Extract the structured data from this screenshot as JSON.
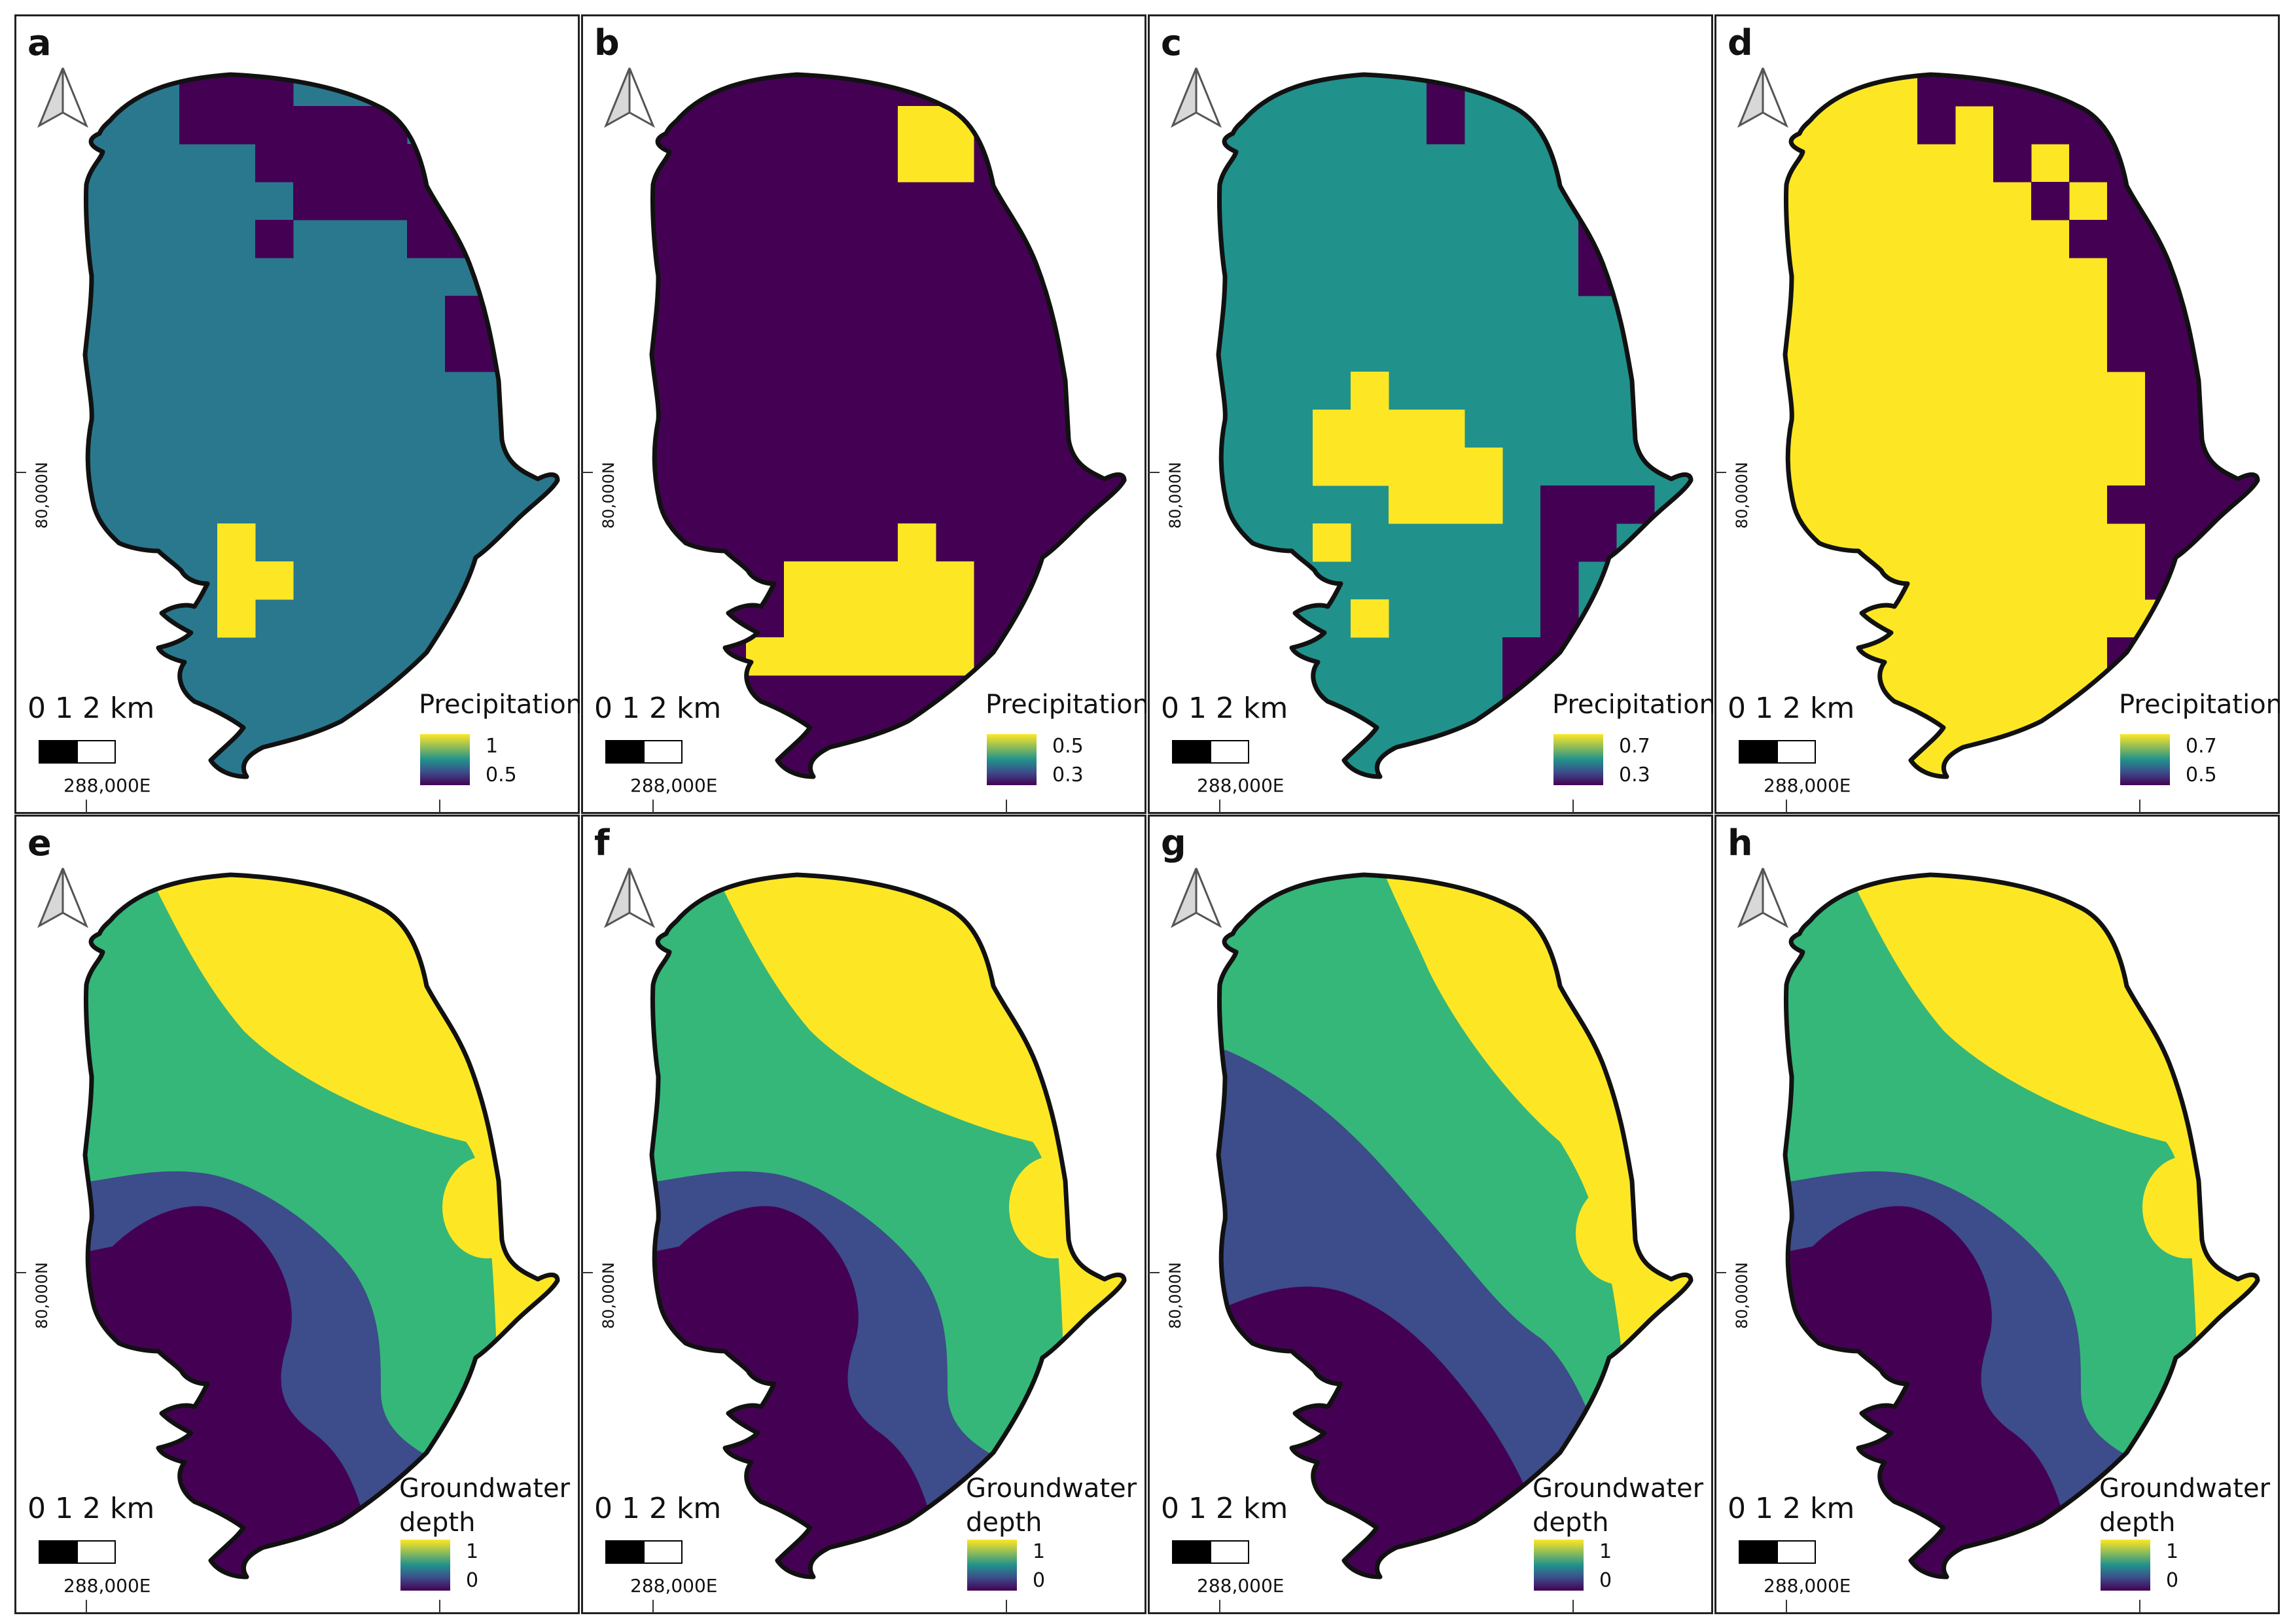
{
  "colors": {
    "purple": "#440154",
    "blue": "#3d4c8a",
    "teal": "#2a788e",
    "cyan": "#21918c",
    "green": "#35b779",
    "yellow": "#fde725",
    "outline": "#111111",
    "frame": "#222222"
  },
  "common": {
    "scale_text": "0  1  2 km",
    "northing_label": "80,000N",
    "easting_label": "288,000E",
    "north_arrow_icon": "north-arrow-icon"
  },
  "panels": [
    {
      "id": "a",
      "letter": "a",
      "legend_title": [
        "Precipitation"
      ],
      "legend_ticks": [
        "1",
        "0.5"
      ],
      "base": "teal",
      "cells": [
        [
          3,
          0
        ],
        [
          4,
          0
        ],
        [
          5,
          0
        ],
        [
          3,
          1
        ],
        [
          4,
          1
        ],
        [
          5,
          1
        ],
        [
          6,
          1
        ],
        [
          7,
          1
        ],
        [
          8,
          1
        ],
        [
          5,
          2
        ],
        [
          6,
          2
        ],
        [
          7,
          2
        ],
        [
          8,
          2
        ],
        [
          9,
          2
        ],
        [
          10,
          2
        ],
        [
          6,
          3
        ],
        [
          7,
          3
        ],
        [
          8,
          3
        ],
        [
          9,
          3
        ],
        [
          10,
          3
        ],
        [
          5,
          4
        ],
        [
          9,
          4
        ],
        [
          10,
          4
        ],
        [
          11,
          5
        ],
        [
          10,
          6
        ],
        [
          11,
          6
        ],
        [
          10,
          7
        ],
        [
          11,
          7
        ]
      ],
      "cells_hi": [
        [
          4,
          12
        ],
        [
          4,
          13
        ],
        [
          5,
          13
        ],
        [
          4,
          14
        ]
      ]
    },
    {
      "id": "b",
      "letter": "b",
      "legend_title": [
        "Precipitation"
      ],
      "legend_ticks": [
        "0.5",
        "0.3"
      ],
      "base": "purple",
      "cells": [],
      "cells_hi": [
        [
          7,
          1
        ],
        [
          8,
          1
        ],
        [
          7,
          2
        ],
        [
          8,
          2
        ],
        [
          7,
          12
        ],
        [
          4,
          13
        ],
        [
          5,
          13
        ],
        [
          6,
          13
        ],
        [
          7,
          13
        ],
        [
          8,
          13
        ],
        [
          4,
          14
        ],
        [
          5,
          14
        ],
        [
          6,
          14
        ],
        [
          7,
          14
        ],
        [
          8,
          14
        ],
        [
          3,
          15
        ],
        [
          4,
          15
        ],
        [
          5,
          15
        ],
        [
          6,
          15
        ],
        [
          7,
          15
        ],
        [
          8,
          15
        ]
      ]
    },
    {
      "id": "c",
      "letter": "c",
      "legend_title": [
        "Precipitation"
      ],
      "legend_ticks": [
        "0.7",
        "0.3"
      ],
      "base": "cyan",
      "cells": [
        [
          6,
          0
        ],
        [
          6,
          1
        ],
        [
          10,
          2
        ],
        [
          10,
          3
        ],
        [
          10,
          4
        ],
        [
          10,
          5
        ],
        [
          9,
          11
        ],
        [
          10,
          11
        ],
        [
          11,
          11
        ],
        [
          9,
          12
        ],
        [
          10,
          12
        ],
        [
          9,
          13
        ],
        [
          9,
          14
        ],
        [
          8,
          15
        ],
        [
          9,
          15
        ],
        [
          8,
          16
        ]
      ],
      "cells_hi": [
        [
          4,
          8
        ],
        [
          3,
          9
        ],
        [
          4,
          9
        ],
        [
          5,
          9
        ],
        [
          6,
          9
        ],
        [
          3,
          10
        ],
        [
          4,
          10
        ],
        [
          5,
          10
        ],
        [
          6,
          10
        ],
        [
          7,
          10
        ],
        [
          5,
          11
        ],
        [
          6,
          11
        ],
        [
          7,
          11
        ],
        [
          3,
          12
        ],
        [
          4,
          14
        ]
      ]
    },
    {
      "id": "d",
      "letter": "d",
      "legend_title": [
        "Precipitation"
      ],
      "legend_ticks": [
        "0.7",
        "0.5"
      ],
      "base": "yellow",
      "cells": [
        [
          4,
          0
        ],
        [
          5,
          0
        ],
        [
          6,
          0
        ],
        [
          7,
          0
        ],
        [
          8,
          0
        ],
        [
          9,
          0
        ],
        [
          10,
          0
        ],
        [
          11,
          0
        ],
        [
          12,
          0
        ],
        [
          4,
          1
        ],
        [
          6,
          1
        ],
        [
          7,
          1
        ],
        [
          8,
          1
        ],
        [
          9,
          1
        ],
        [
          10,
          1
        ],
        [
          11,
          1
        ],
        [
          12,
          1
        ],
        [
          6,
          2
        ],
        [
          8,
          2
        ],
        [
          9,
          2
        ],
        [
          10,
          2
        ],
        [
          11,
          2
        ],
        [
          12,
          2
        ],
        [
          7,
          3
        ],
        [
          9,
          3
        ],
        [
          10,
          3
        ],
        [
          11,
          3
        ],
        [
          12,
          3
        ],
        [
          8,
          4
        ],
        [
          9,
          4
        ],
        [
          10,
          4
        ],
        [
          11,
          4
        ],
        [
          12,
          4
        ],
        [
          9,
          5
        ],
        [
          10,
          5
        ],
        [
          11,
          5
        ],
        [
          12,
          5
        ],
        [
          9,
          6
        ],
        [
          10,
          6
        ],
        [
          11,
          6
        ],
        [
          12,
          6
        ],
        [
          9,
          7
        ],
        [
          10,
          7
        ],
        [
          11,
          7
        ],
        [
          12,
          7
        ],
        [
          10,
          8
        ],
        [
          11,
          8
        ],
        [
          12,
          8
        ],
        [
          10,
          9
        ],
        [
          11,
          9
        ],
        [
          12,
          9
        ],
        [
          10,
          10
        ],
        [
          11,
          10
        ],
        [
          12,
          10
        ],
        [
          9,
          11
        ],
        [
          10,
          11
        ],
        [
          11,
          11
        ],
        [
          12,
          11
        ],
        [
          10,
          12
        ],
        [
          11,
          12
        ],
        [
          12,
          12
        ],
        [
          10,
          13
        ],
        [
          11,
          13
        ],
        [
          12,
          13
        ],
        [
          9,
          15
        ],
        [
          10,
          15
        ],
        [
          11,
          15
        ],
        [
          9,
          16
        ],
        [
          10,
          16
        ]
      ],
      "cells_hi": []
    },
    {
      "id": "e",
      "letter": "e",
      "legend_title": [
        "Groundwater",
        "depth"
      ],
      "legend_ticks": [
        "1",
        "0"
      ],
      "variant": "e"
    },
    {
      "id": "f",
      "letter": "f",
      "legend_title": [
        "Groundwater",
        "depth"
      ],
      "legend_ticks": [
        "1",
        "0"
      ],
      "variant": "e"
    },
    {
      "id": "g",
      "letter": "g",
      "legend_title": [
        "Groundwater",
        "depth"
      ],
      "legend_ticks": [
        "1",
        "0"
      ],
      "variant": "g"
    },
    {
      "id": "h",
      "letter": "h",
      "legend_title": [
        "Groundwater",
        "depth"
      ],
      "legend_ticks": [
        "1",
        "0"
      ],
      "variant": "e"
    }
  ]
}
